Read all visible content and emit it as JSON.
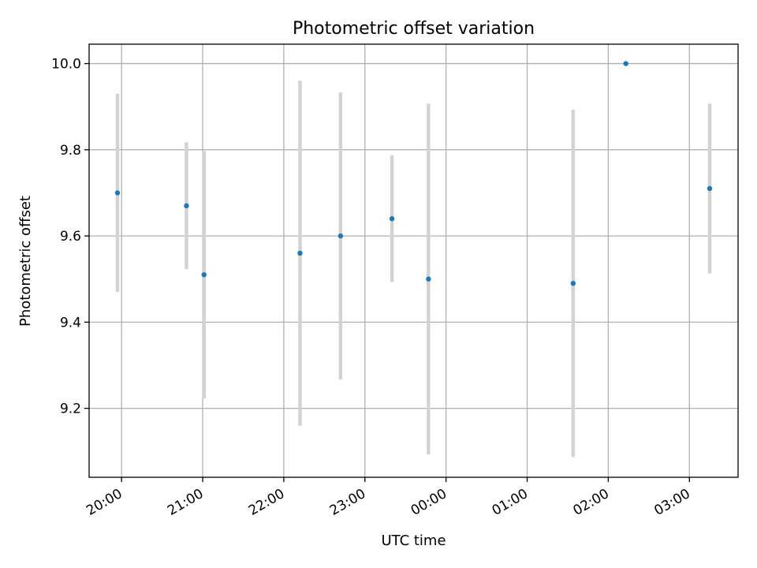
{
  "chart_data": {
    "type": "scatter",
    "title": "Photometric offset variation",
    "xlabel": "UTC time",
    "ylabel": "Photometric offset",
    "x_unit": "UTC clock time",
    "x_ticks": [
      "20:00",
      "21:00",
      "22:00",
      "23:00",
      "00:00",
      "01:00",
      "02:00",
      "03:00"
    ],
    "y_ticks": [
      "9.2",
      "9.4",
      "9.6",
      "9.8",
      "10.0"
    ],
    "xlim": [
      "19:36",
      "03:36"
    ],
    "ylim": [
      9.04,
      10.045
    ],
    "grid": true,
    "point_color": "#1f77b4",
    "errorbar_color": "#d3d3d3",
    "series": [
      {
        "points": [
          {
            "x": "19:57",
            "y": 9.7,
            "err": 0.23
          },
          {
            "x": "20:48",
            "y": 9.67,
            "err": 0.147
          },
          {
            "x": "21:01",
            "y": 9.51,
            "err": 0.287
          },
          {
            "x": "22:12",
            "y": 9.56,
            "err": 0.4
          },
          {
            "x": "22:42",
            "y": 9.6,
            "err": 0.333
          },
          {
            "x": "23:20",
            "y": 9.64,
            "err": 0.147
          },
          {
            "x": "23:47",
            "y": 9.5,
            "err": 0.407
          },
          {
            "x": "01:34",
            "y": 9.49,
            "err": 0.403
          },
          {
            "x": "02:13",
            "y": 10.0,
            "err": 0.0
          },
          {
            "x": "03:15",
            "y": 9.71,
            "err": 0.197
          }
        ]
      }
    ]
  }
}
